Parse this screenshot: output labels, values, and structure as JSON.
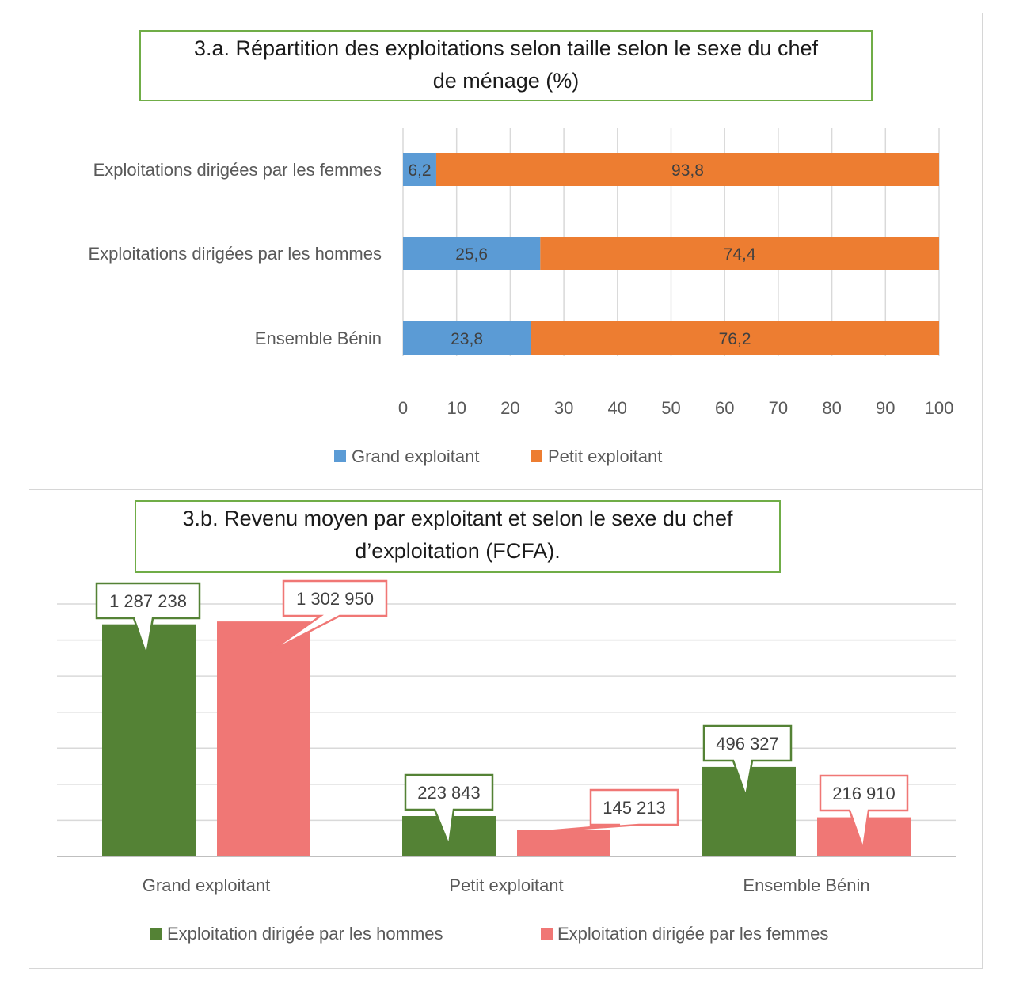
{
  "chart_data": [
    {
      "type": "bar",
      "orientation": "horizontal",
      "stacked": true,
      "title_line1": "3.a. Répartition des exploitations selon taille selon le sexe du chef",
      "title_line2": "de ménage (%)",
      "categories": [
        "Exploitations dirigées par les femmes",
        "Exploitations dirigées par les hommes",
        "Ensemble Bénin"
      ],
      "series": [
        {
          "name": "Grand exploitant",
          "color": "#5b9bd5",
          "values": [
            6.2,
            25.6,
            23.8
          ],
          "labels": [
            "6,2",
            "25,6",
            "23,8"
          ]
        },
        {
          "name": "Petit exploitant",
          "color": "#ed7d31",
          "values": [
            93.8,
            74.4,
            76.2
          ],
          "labels": [
            "93,8",
            "74,4",
            "76,2"
          ]
        }
      ],
      "xlim": [
        0,
        100
      ],
      "xticks": [
        "0",
        "10",
        "20",
        "30",
        "40",
        "50",
        "60",
        "70",
        "80",
        "90",
        "100"
      ],
      "grid": true,
      "legend": "bottom"
    },
    {
      "type": "bar",
      "orientation": "vertical",
      "title_line1": "3.b. Revenu moyen par exploitant et selon le sexe du chef",
      "title_line2": "d’exploitation (FCFA).",
      "categories": [
        "Grand exploitant",
        "Petit exploitant",
        "Ensemble Bénin"
      ],
      "series": [
        {
          "name": "Exploitation dirigée par les hommes",
          "color": "#548235",
          "values": [
            1287238,
            223843,
            496327
          ],
          "labels": [
            "1 287 238",
            "223 843",
            "496 327"
          ]
        },
        {
          "name": "Exploitation dirigée par les femmes",
          "color": "#f07775",
          "values": [
            1302950,
            145213,
            216910
          ],
          "labels": [
            "1 302 950",
            "145 213",
            "216 910"
          ]
        }
      ],
      "ylim": [
        0,
        1400000
      ],
      "grid": true,
      "legend": "bottom"
    }
  ]
}
